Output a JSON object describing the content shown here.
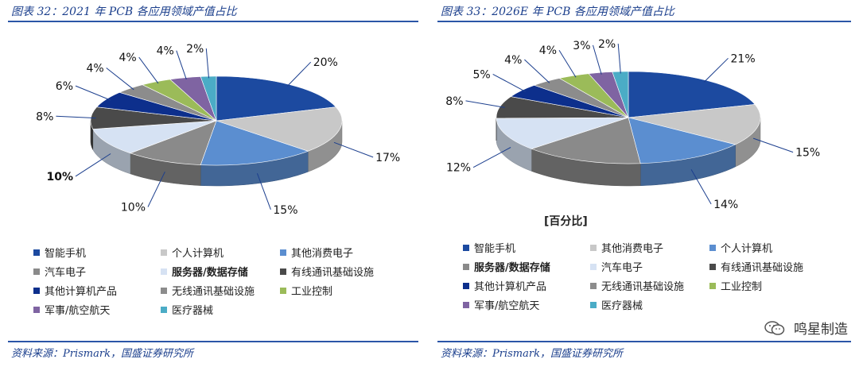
{
  "colors": {
    "title": "#1a3e8c",
    "rule": "#2b55a7"
  },
  "left": {
    "title": "图表 32：2021 年 PCB 各应用领域产值占比",
    "source": "资料来源：Prismark，国盛证券研究所",
    "legend_cols": 3,
    "legend": [
      {
        "label": "智能手机",
        "color": "#1c4aa0",
        "bold": false
      },
      {
        "label": "个人计算机",
        "color": "#c8c8c8",
        "bold": false
      },
      {
        "label": "其他消费电子",
        "color": "#5b8ed0",
        "bold": false
      },
      {
        "label": "汽车电子",
        "color": "#8a8a8a",
        "bold": false
      },
      {
        "label": "服务器/数据存储",
        "color": "#d6e2f3",
        "bold": true
      },
      {
        "label": "有线通讯基础设施",
        "color": "#4a4a4a",
        "bold": false
      },
      {
        "label": "其他计算机产品",
        "color": "#0d2f8c",
        "bold": false
      },
      {
        "label": "无线通讯基础设施",
        "color": "#8c8c8c",
        "bold": false
      },
      {
        "label": "工业控制",
        "color": "#9bbb59",
        "bold": false
      },
      {
        "label": "军事/航空航天",
        "color": "#7f64a2",
        "bold": false
      },
      {
        "label": "医疗器械",
        "color": "#4bacc6",
        "bold": false
      }
    ]
  },
  "right": {
    "title": "图表 33：2026E 年 PCB 各应用领域产值占比",
    "source": "资料来源：Prismark，国盛证券研究所",
    "unit_note": "[百分比]",
    "legend_cols": 3,
    "legend": [
      {
        "label": "智能手机",
        "color": "#1c4aa0",
        "bold": false
      },
      {
        "label": "其他消费电子",
        "color": "#c8c8c8",
        "bold": false
      },
      {
        "label": "个人计算机",
        "color": "#5b8ed0",
        "bold": false
      },
      {
        "label": "服务器/数据存储",
        "color": "#8a8a8a",
        "bold": true
      },
      {
        "label": "汽车电子",
        "color": "#d6e2f3",
        "bold": false
      },
      {
        "label": "有线通讯基础设施",
        "color": "#4a4a4a",
        "bold": false
      },
      {
        "label": "其他计算机产品",
        "color": "#0d2f8c",
        "bold": false
      },
      {
        "label": "无线通讯基础设施",
        "color": "#8c8c8c",
        "bold": false
      },
      {
        "label": "工业控制",
        "color": "#9bbb59",
        "bold": false
      },
      {
        "label": "军事/航空航天",
        "color": "#7f64a2",
        "bold": false
      },
      {
        "label": "医疗器械",
        "color": "#4bacc6",
        "bold": false
      }
    ]
  },
  "watermark": "鸣星制造",
  "chart_data": [
    {
      "type": "pie",
      "title": "图表 32：2021 年 PCB 各应用领域产值占比",
      "categories": [
        "智能手机",
        "个人计算机",
        "其他消费电子",
        "汽车电子",
        "服务器/数据存储",
        "有线通讯基础设施",
        "其他计算机产品",
        "无线通讯基础设施",
        "工业控制",
        "军事/航空航天",
        "医疗器械"
      ],
      "slices": [
        {
          "label": "智能手机",
          "value": 20,
          "text": "20%",
          "color": "#1c4aa0"
        },
        {
          "label": "个人计算机",
          "value": 17,
          "text": "17%",
          "color": "#c8c8c8"
        },
        {
          "label": "其他消费电子",
          "value": 15,
          "text": "15%",
          "color": "#5b8ed0"
        },
        {
          "label": "汽车电子",
          "value": 10,
          "text": "10%",
          "color": "#8a8a8a"
        },
        {
          "label": "服务器/数据存储",
          "value": 10,
          "text": "10%",
          "color": "#d6e2f3",
          "bold": true
        },
        {
          "label": "有线通讯基础设施",
          "value": 8,
          "text": "8%",
          "color": "#4a4a4a"
        },
        {
          "label": "其他计算机产品",
          "value": 6,
          "text": "6%",
          "color": "#0d2f8c"
        },
        {
          "label": "无线通讯基础设施",
          "value": 4,
          "text": "4%",
          "color": "#8c8c8c"
        },
        {
          "label": "工业控制",
          "value": 4,
          "text": "4%",
          "color": "#9bbb59"
        },
        {
          "label": "军事/航空航天",
          "value": 4,
          "text": "4%",
          "color": "#7f64a2"
        },
        {
          "label": "医疗器械",
          "value": 2,
          "text": "2%",
          "color": "#4bacc6"
        }
      ],
      "style": "3d-pie"
    },
    {
      "type": "pie",
      "title": "图表 33：2026E 年 PCB 各应用领域产值占比",
      "categories": [
        "智能手机",
        "其他消费电子",
        "个人计算机",
        "服务器/数据存储",
        "汽车电子",
        "有线通讯基础设施",
        "其他计算机产品",
        "无线通讯基础设施",
        "工业控制",
        "军事/航空航天",
        "医疗器械"
      ],
      "slices": [
        {
          "label": "智能手机",
          "value": 21,
          "text": "21%",
          "color": "#1c4aa0"
        },
        {
          "label": "其他消费电子",
          "value": 15,
          "text": "15%",
          "color": "#c8c8c8"
        },
        {
          "label": "个人计算机",
          "value": 14,
          "text": "14%",
          "color": "#5b8ed0"
        },
        {
          "label": "服务器/数据存储",
          "value": 15,
          "text": "",
          "color": "#8a8a8a"
        },
        {
          "label": "汽车电子",
          "value": 12,
          "text": "12%",
          "color": "#d6e2f3"
        },
        {
          "label": "有线通讯基础设施",
          "value": 8,
          "text": "8%",
          "color": "#4a4a4a"
        },
        {
          "label": "其他计算机产品",
          "value": 5,
          "text": "5%",
          "color": "#0d2f8c"
        },
        {
          "label": "无线通讯基础设施",
          "value": 4,
          "text": "4%",
          "color": "#8c8c8c"
        },
        {
          "label": "工业控制",
          "value": 4,
          "text": "4%",
          "color": "#9bbb59"
        },
        {
          "label": "军事/航空航天",
          "value": 3,
          "text": "3%",
          "color": "#7f64a2"
        },
        {
          "label": "医疗器械",
          "value": 2,
          "text": "2%",
          "color": "#4bacc6"
        }
      ],
      "style": "3d-pie"
    }
  ]
}
